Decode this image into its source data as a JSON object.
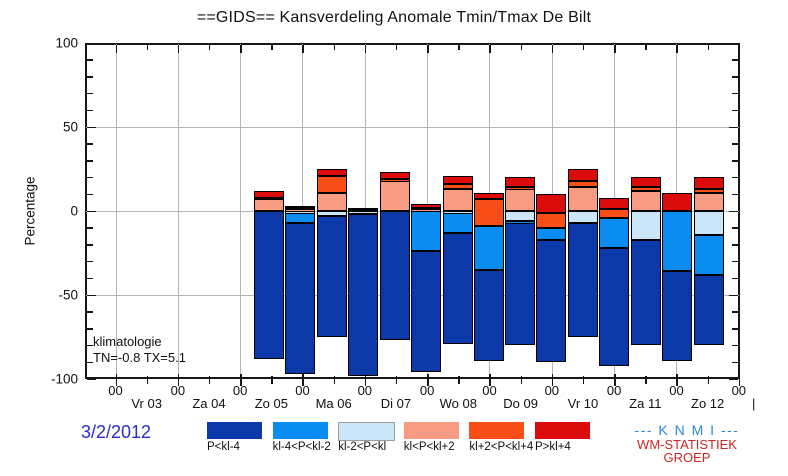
{
  "title": "==GIDS== Kansverdeling Anomale Tmin/Tmax De Bilt",
  "y_axis": {
    "label": "Percentage",
    "tick_values": [
      100,
      50,
      0,
      -50,
      -100
    ],
    "tick_labels": [
      "100",
      "50",
      "0",
      "-50",
      "-100"
    ],
    "minor_step": 10,
    "gridline_values": [
      50,
      0,
      -50
    ]
  },
  "x_axis": {
    "hour_label": "00",
    "hour_tick_count": 11,
    "days": [
      "Vr 03",
      "Za 04",
      "Zo 05",
      "Ma 06",
      "Di 07",
      "Wo 08",
      "Do 09",
      "Vr 10",
      "Za 11",
      "Zo 12"
    ],
    "end_mark": "|"
  },
  "annotations": {
    "line1": "klimatologie",
    "line2": "TN=-0.8  TX=5.1"
  },
  "footer": {
    "date": "3/2/2012",
    "knmi": "--- K N M I ---",
    "wm1": "WM-STATISTIEK",
    "wm2": "GROEP"
  },
  "legend": [
    {
      "label": "P<kl-4",
      "color": "#0c38a8"
    },
    {
      "label": "kl-4<P<kl-2",
      "color": "#0a8cf0"
    },
    {
      "label": "kl-2<P<kl",
      "color": "#cbe5f9"
    },
    {
      "label": "kl<P<kl+2",
      "color": "#f79c83"
    },
    {
      "label": "kl+2<P<kl+4",
      "color": "#fa4e18"
    },
    {
      "label": "P>kl+4",
      "color": "#dd0c0c"
    }
  ],
  "colors": {
    "gridline": "#b5b5b5",
    "frame": "#161616",
    "date_text": "#2b2bd0",
    "knmi_text": "#2e86db",
    "wm_text": "#cf2525"
  },
  "chart_data": {
    "type": "bar",
    "stacked": true,
    "title": "==GIDS== Kansverdeling Anomale Tmin/Tmax De Bilt",
    "ylabel": "Percentage",
    "ylim": [
      -100,
      100
    ],
    "grid": "major",
    "legend_position": "bottom",
    "categories_legend": [
      "P<kl-4",
      "kl-4<P<kl-2",
      "kl-2<P<kl",
      "kl<P<kl+2",
      "kl+2<P<kl+4",
      "P>kl+4"
    ],
    "stack_order_top_to_bottom": [
      "P>kl+4",
      "kl+2<P<kl+4",
      "kl<P<kl+2",
      "kl-2<P<kl",
      "kl-4<P<kl-2",
      "P<kl-4"
    ],
    "note": "Each bar is a 100%-total stacked probability distribution (percent). Two bars per day (Tmin/Tmax pair, slots a/b); the last day has one bar. top_pct is the bar's top position on the percentage axis; the bar extends 100 points downward.",
    "days_with_bars": [
      "Zo 05",
      "Ma 06",
      "Di 07",
      "Wo 08",
      "Do 09",
      "Vr 10",
      "Za 11",
      "Zo 12"
    ],
    "bars": [
      {
        "day": "Zo 05",
        "slot": "a",
        "top_pct": 12,
        "values": {
          "P>kl+4": 4,
          "kl+2<P<kl+4": 1,
          "kl<P<kl+2": 7,
          "kl-2<P<kl": 0,
          "kl-4<P<kl-2": 0,
          "P<kl-4": 88
        }
      },
      {
        "day": "Zo 05",
        "slot": "b",
        "top_pct": 3,
        "values": {
          "P>kl+4": 1,
          "kl+2<P<kl+4": 1,
          "kl<P<kl+2": 1,
          "kl-2<P<kl": 1,
          "kl-4<P<kl-2": 6,
          "P<kl-4": 90
        }
      },
      {
        "day": "Ma 06",
        "slot": "a",
        "top_pct": 25,
        "values": {
          "P>kl+4": 4,
          "kl+2<P<kl+4": 10,
          "kl<P<kl+2": 11,
          "kl-2<P<kl": 3,
          "kl-4<P<kl-2": 0,
          "P<kl-4": 72
        }
      },
      {
        "day": "Ma 06",
        "slot": "b",
        "top_pct": 2,
        "values": {
          "P>kl+4": 1,
          "kl+2<P<kl+4": 0.5,
          "kl<P<kl+2": 0.5,
          "kl-2<P<kl": 1,
          "kl-4<P<kl-2": 1,
          "P<kl-4": 96
        }
      },
      {
        "day": "Di 07",
        "slot": "a",
        "top_pct": 23,
        "values": {
          "P>kl+4": 4,
          "kl+2<P<kl+4": 1,
          "kl<P<kl+2": 18,
          "kl-2<P<kl": 0,
          "kl-4<P<kl-2": 0,
          "P<kl-4": 77
        }
      },
      {
        "day": "Di 07",
        "slot": "b",
        "top_pct": 4,
        "values": {
          "P>kl+4": 2,
          "kl+2<P<kl+4": 1,
          "kl<P<kl+2": 1,
          "kl-2<P<kl": 0,
          "kl-4<P<kl-2": 24,
          "P<kl-4": 72
        }
      },
      {
        "day": "Wo 08",
        "slot": "a",
        "top_pct": 21,
        "values": {
          "P>kl+4": 5,
          "kl+2<P<kl+4": 3,
          "kl<P<kl+2": 13,
          "kl-2<P<kl": 1,
          "kl-4<P<kl-2": 12,
          "P<kl-4": 66
        }
      },
      {
        "day": "Wo 08",
        "slot": "b",
        "top_pct": 11,
        "values": {
          "P>kl+4": 4,
          "kl+2<P<kl+4": 16,
          "kl<P<kl+2": 0,
          "kl-2<P<kl": 0,
          "kl-4<P<kl-2": 26,
          "P<kl-4": 54
        }
      },
      {
        "day": "Do 09",
        "slot": "a",
        "top_pct": 20,
        "values": {
          "P>kl+4": 6,
          "kl+2<P<kl+4": 1,
          "kl<P<kl+2": 13,
          "kl-2<P<kl": 6,
          "kl-4<P<kl-2": 1,
          "P<kl-4": 73
        }
      },
      {
        "day": "Do 09",
        "slot": "b",
        "top_pct": 10,
        "values": {
          "P>kl+4": 11,
          "kl+2<P<kl+4": 9,
          "kl<P<kl+2": 0,
          "kl-2<P<kl": 0,
          "kl-4<P<kl-2": 7,
          "P<kl-4": 73
        }
      },
      {
        "day": "Vr 10",
        "slot": "a",
        "top_pct": 25,
        "values": {
          "P>kl+4": 7,
          "kl+2<P<kl+4": 4,
          "kl<P<kl+2": 14,
          "kl-2<P<kl": 7,
          "kl-4<P<kl-2": 0,
          "P<kl-4": 68
        }
      },
      {
        "day": "Vr 10",
        "slot": "b",
        "top_pct": 8,
        "values": {
          "P>kl+4": 7,
          "kl+2<P<kl+4": 5,
          "kl<P<kl+2": 0,
          "kl-2<P<kl": 0,
          "kl-4<P<kl-2": 18,
          "P<kl-4": 70
        }
      },
      {
        "day": "Za 11",
        "slot": "a",
        "top_pct": 20,
        "values": {
          "P>kl+4": 6,
          "kl+2<P<kl+4": 2,
          "kl<P<kl+2": 12,
          "kl-2<P<kl": 17,
          "kl-4<P<kl-2": 0,
          "P<kl-4": 63
        }
      },
      {
        "day": "Za 11",
        "slot": "b",
        "top_pct": 11,
        "values": {
          "P>kl+4": 11,
          "kl+2<P<kl+4": 0,
          "kl<P<kl+2": 0,
          "kl-2<P<kl": 0,
          "kl-4<P<kl-2": 36,
          "P<kl-4": 53
        }
      },
      {
        "day": "Zo 12",
        "slot": "a",
        "top_pct": 20,
        "values": {
          "P>kl+4": 7,
          "kl+2<P<kl+4": 2,
          "kl<P<kl+2": 11,
          "kl-2<P<kl": 14,
          "kl-4<P<kl-2": 24,
          "P<kl-4": 42
        }
      }
    ]
  }
}
